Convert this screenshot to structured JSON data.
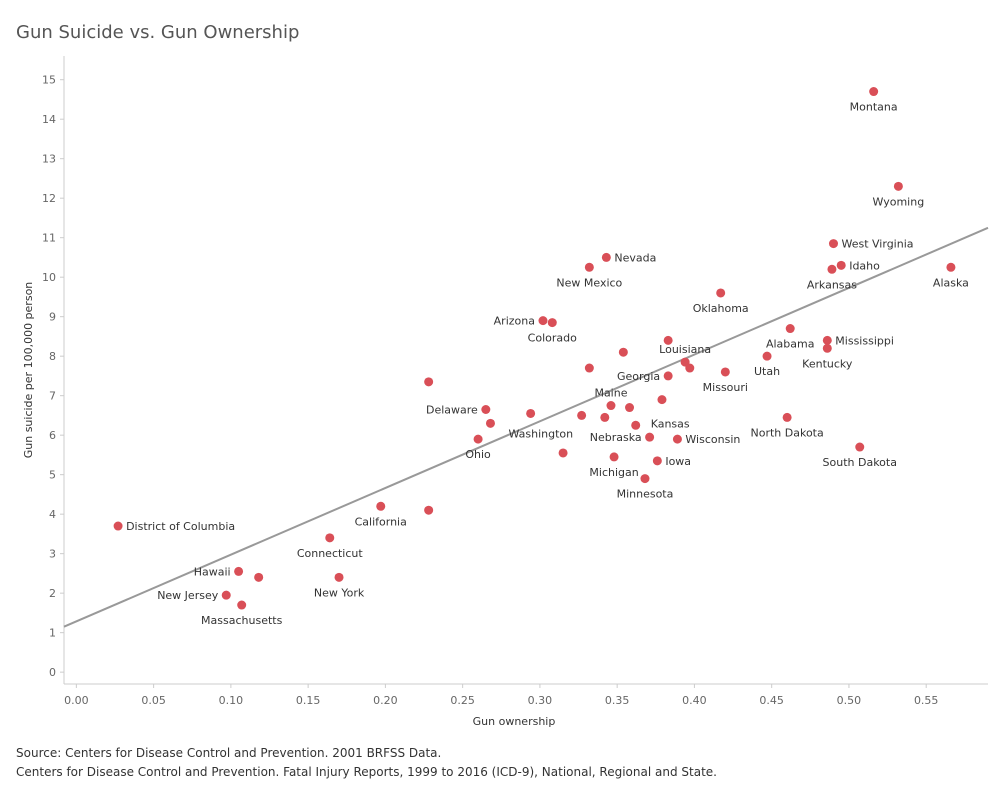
{
  "title": "Gun Suicide vs. Gun Ownership",
  "source_lines": [
    "Source: Centers for Disease Control and Prevention. 2001 BRFSS Data.",
    "Centers for Disease Control and Prevention. Fatal Injury Reports, 1999 to 2016 (ICD-9), National, Regional and State."
  ],
  "colors": {
    "point": "#d94f57",
    "trend": "#999999",
    "axis": "#cccccc"
  },
  "chart_data": {
    "type": "scatter",
    "title": "Gun Suicide vs. Gun Ownership",
    "xlabel": "Gun ownership",
    "ylabel": "Gun suicide per 100,000 person",
    "xlim": [
      -0.008,
      0.59
    ],
    "ylim": [
      -0.3,
      15.6
    ],
    "xticks": [
      "0.00",
      "0.05",
      "0.10",
      "0.15",
      "0.20",
      "0.25",
      "0.30",
      "0.35",
      "0.40",
      "0.45",
      "0.50",
      "0.55"
    ],
    "yticks": [
      "0",
      "1",
      "2",
      "3",
      "4",
      "5",
      "6",
      "7",
      "8",
      "9",
      "10",
      "11",
      "12",
      "13",
      "14",
      "15"
    ],
    "grid": false,
    "trendline": {
      "x0": -0.008,
      "y0": 1.15,
      "x1": 0.59,
      "y1": 11.25
    },
    "points": [
      {
        "x": 0.516,
        "y": 14.7,
        "label": "Montana",
        "pos": "below"
      },
      {
        "x": 0.532,
        "y": 12.3,
        "label": "Wyoming",
        "pos": "below"
      },
      {
        "x": 0.49,
        "y": 10.85,
        "label": "West Virginia",
        "pos": "right"
      },
      {
        "x": 0.495,
        "y": 10.3,
        "label": "Idaho",
        "pos": "right"
      },
      {
        "x": 0.489,
        "y": 10.2,
        "label": "Arkansas",
        "pos": "below"
      },
      {
        "x": 0.566,
        "y": 10.25,
        "label": "Alaska",
        "pos": "below"
      },
      {
        "x": 0.343,
        "y": 10.5,
        "label": "Nevada",
        "pos": "right"
      },
      {
        "x": 0.332,
        "y": 10.25,
        "label": "New Mexico",
        "pos": "below"
      },
      {
        "x": 0.417,
        "y": 9.6,
        "label": "Oklahoma",
        "pos": "below"
      },
      {
        "x": 0.302,
        "y": 8.9,
        "label": "Arizona",
        "pos": "left"
      },
      {
        "x": 0.308,
        "y": 8.85,
        "label": "Colorado",
        "pos": "below"
      },
      {
        "x": 0.462,
        "y": 8.7,
        "label": "Alabama",
        "pos": "below"
      },
      {
        "x": 0.486,
        "y": 8.4,
        "label": "Mississippi",
        "pos": "right"
      },
      {
        "x": 0.486,
        "y": 8.2,
        "label": "Kentucky",
        "pos": "below"
      },
      {
        "x": 0.383,
        "y": 8.4,
        "label": "",
        "pos": "none"
      },
      {
        "x": 0.394,
        "y": 7.85,
        "label": "Louisiana",
        "pos": "above"
      },
      {
        "x": 0.354,
        "y": 8.1,
        "label": "",
        "pos": "none"
      },
      {
        "x": 0.447,
        "y": 8.0,
        "label": "Utah",
        "pos": "below"
      },
      {
        "x": 0.397,
        "y": 7.7,
        "label": "",
        "pos": "none"
      },
      {
        "x": 0.42,
        "y": 7.6,
        "label": "Missouri",
        "pos": "below"
      },
      {
        "x": 0.383,
        "y": 7.5,
        "label": "Georgia",
        "pos": "left"
      },
      {
        "x": 0.332,
        "y": 7.7,
        "label": "",
        "pos": "none"
      },
      {
        "x": 0.228,
        "y": 7.35,
        "label": "",
        "pos": "none"
      },
      {
        "x": 0.379,
        "y": 6.9,
        "label": "",
        "pos": "none"
      },
      {
        "x": 0.346,
        "y": 6.75,
        "label": "Maine",
        "pos": "above"
      },
      {
        "x": 0.358,
        "y": 6.7,
        "label": "",
        "pos": "none"
      },
      {
        "x": 0.265,
        "y": 6.65,
        "label": "Delaware",
        "pos": "left"
      },
      {
        "x": 0.294,
        "y": 6.55,
        "label": "",
        "pos": "none"
      },
      {
        "x": 0.327,
        "y": 6.5,
        "label": "",
        "pos": "none"
      },
      {
        "x": 0.342,
        "y": 6.45,
        "label": "",
        "pos": "none"
      },
      {
        "x": 0.46,
        "y": 6.45,
        "label": "North Dakota",
        "pos": "below"
      },
      {
        "x": 0.268,
        "y": 6.3,
        "label": "Washington",
        "pos": "below-right"
      },
      {
        "x": 0.362,
        "y": 6.25,
        "label": "Kansas",
        "pos": "above-right"
      },
      {
        "x": 0.371,
        "y": 5.95,
        "label": "Nebraska",
        "pos": "left"
      },
      {
        "x": 0.26,
        "y": 5.9,
        "label": "Ohio",
        "pos": "below"
      },
      {
        "x": 0.389,
        "y": 5.9,
        "label": "Wisconsin",
        "pos": "right"
      },
      {
        "x": 0.507,
        "y": 5.7,
        "label": "South Dakota",
        "pos": "below"
      },
      {
        "x": 0.315,
        "y": 5.55,
        "label": "",
        "pos": "none"
      },
      {
        "x": 0.348,
        "y": 5.45,
        "label": "Michigan",
        "pos": "below"
      },
      {
        "x": 0.376,
        "y": 5.35,
        "label": "Iowa",
        "pos": "right"
      },
      {
        "x": 0.368,
        "y": 4.9,
        "label": "Minnesota",
        "pos": "below"
      },
      {
        "x": 0.197,
        "y": 4.2,
        "label": "California",
        "pos": "below"
      },
      {
        "x": 0.228,
        "y": 4.1,
        "label": "",
        "pos": "none"
      },
      {
        "x": 0.027,
        "y": 3.7,
        "label": "District of Columbia",
        "pos": "right"
      },
      {
        "x": 0.164,
        "y": 3.4,
        "label": "Connecticut",
        "pos": "below"
      },
      {
        "x": 0.105,
        "y": 2.55,
        "label": "Hawaii",
        "pos": "left"
      },
      {
        "x": 0.118,
        "y": 2.4,
        "label": "",
        "pos": "none"
      },
      {
        "x": 0.17,
        "y": 2.4,
        "label": "New York",
        "pos": "below"
      },
      {
        "x": 0.097,
        "y": 1.95,
        "label": "New Jersey",
        "pos": "left"
      },
      {
        "x": 0.107,
        "y": 1.7,
        "label": "Massachusetts",
        "pos": "below"
      }
    ]
  }
}
